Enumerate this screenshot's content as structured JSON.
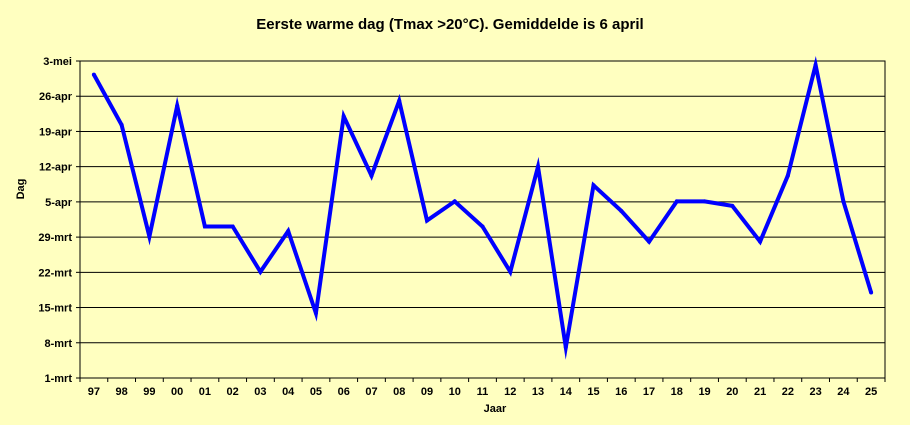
{
  "chart_data": {
    "type": "line",
    "title": "Eerste warme dag (Tmax >20°C). Gemiddelde is 6 april",
    "xlabel": "Jaar",
    "ylabel": "Dag",
    "categories": [
      "97",
      "98",
      "99",
      "00",
      "01",
      "02",
      "03",
      "04",
      "05",
      "06",
      "07",
      "08",
      "09",
      "10",
      "11",
      "12",
      "13",
      "14",
      "15",
      "16",
      "17",
      "18",
      "19",
      "20",
      "21",
      "22",
      "23",
      "24",
      "25"
    ],
    "y_unit": "day of year (1 = 1-mrt)",
    "ylim": [
      1,
      64
    ],
    "yticks": [
      {
        "value": 1,
        "label": "1-mrt"
      },
      {
        "value": 8,
        "label": "8-mrt"
      },
      {
        "value": 15,
        "label": "15-mrt"
      },
      {
        "value": 22,
        "label": "22-mrt"
      },
      {
        "value": 29,
        "label": "29-mrt"
      },
      {
        "value": 36,
        "label": "5-apr"
      },
      {
        "value": 43,
        "label": "12-apr"
      },
      {
        "value": 50,
        "label": "19-apr"
      },
      {
        "value": 57,
        "label": "26-apr"
      },
      {
        "value": 64,
        "label": "3-mei"
      }
    ],
    "series": [
      {
        "values": [
          61.3,
          51.3,
          29.1,
          55.1,
          31.1,
          31.1,
          22.1,
          30.2,
          13.9,
          53.0,
          41.2,
          56.1,
          32.3,
          36.1,
          31.1,
          22.1,
          43.0,
          7.1,
          39.3,
          34.2,
          28.1,
          36.1,
          36.1,
          35.2,
          28.1,
          41.2,
          63.2,
          36.1,
          18.0
        ]
      }
    ],
    "grid": true,
    "legend": "none",
    "colors": {
      "background": "#ffffc0",
      "plot_background": "#ffffc0",
      "line": "#0000ff",
      "grid": "#000000"
    }
  }
}
